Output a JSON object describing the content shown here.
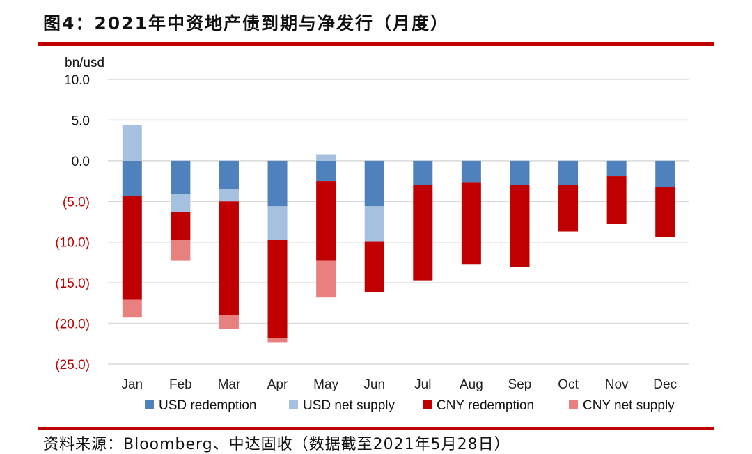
{
  "figure": {
    "title": "图4：2021年中资地产债到期与净发行（月度）",
    "source": "资料来源：Bloomberg、中达固收（数据截至2021年5月28日）"
  },
  "chart_data": {
    "type": "bar",
    "stacked": true,
    "ylabel_unit": "bn/usd",
    "ylim": [
      -25,
      10
    ],
    "y_ticks": [
      10,
      5,
      0,
      -5,
      -10,
      -15,
      -20,
      -25
    ],
    "y_tick_labels": [
      "10.0",
      "5.0",
      "0.0",
      "(5.0)",
      "(10.0)",
      "(15.0)",
      "(20.0)",
      "(25.0)"
    ],
    "negative_tick_color": "#c00000",
    "positive_tick_color": "#111111",
    "grid": true,
    "legend_position": "bottom",
    "categories": [
      "Jan",
      "Feb",
      "Mar",
      "Apr",
      "May",
      "Jun",
      "Jul",
      "Aug",
      "Sep",
      "Oct",
      "Nov",
      "Dec"
    ],
    "series": [
      {
        "name": "USD redemption",
        "color": "#4f81bd",
        "values": [
          -4.3,
          -4.1,
          -3.5,
          -5.6,
          -2.5,
          -5.6,
          -3.0,
          -2.7,
          -3.0,
          -3.0,
          -1.9,
          -3.2
        ]
      },
      {
        "name": "USD net supply",
        "color": "#a6c0e0",
        "values": [
          4.4,
          -2.2,
          -1.5,
          -4.1,
          0.8,
          -4.3,
          0,
          0,
          0,
          0,
          0,
          0
        ]
      },
      {
        "name": "CNY redemption",
        "color": "#c00000",
        "values": [
          -12.8,
          -3.4,
          -14.0,
          -12.1,
          -9.8,
          -6.2,
          -11.7,
          -10.0,
          -10.1,
          -5.7,
          -5.9,
          -6.2
        ]
      },
      {
        "name": "CNY net supply",
        "color": "#e88080",
        "values": [
          -2.1,
          -2.6,
          -1.7,
          -0.5,
          -4.5,
          0,
          0,
          0,
          0,
          0,
          0,
          0
        ]
      }
    ]
  }
}
